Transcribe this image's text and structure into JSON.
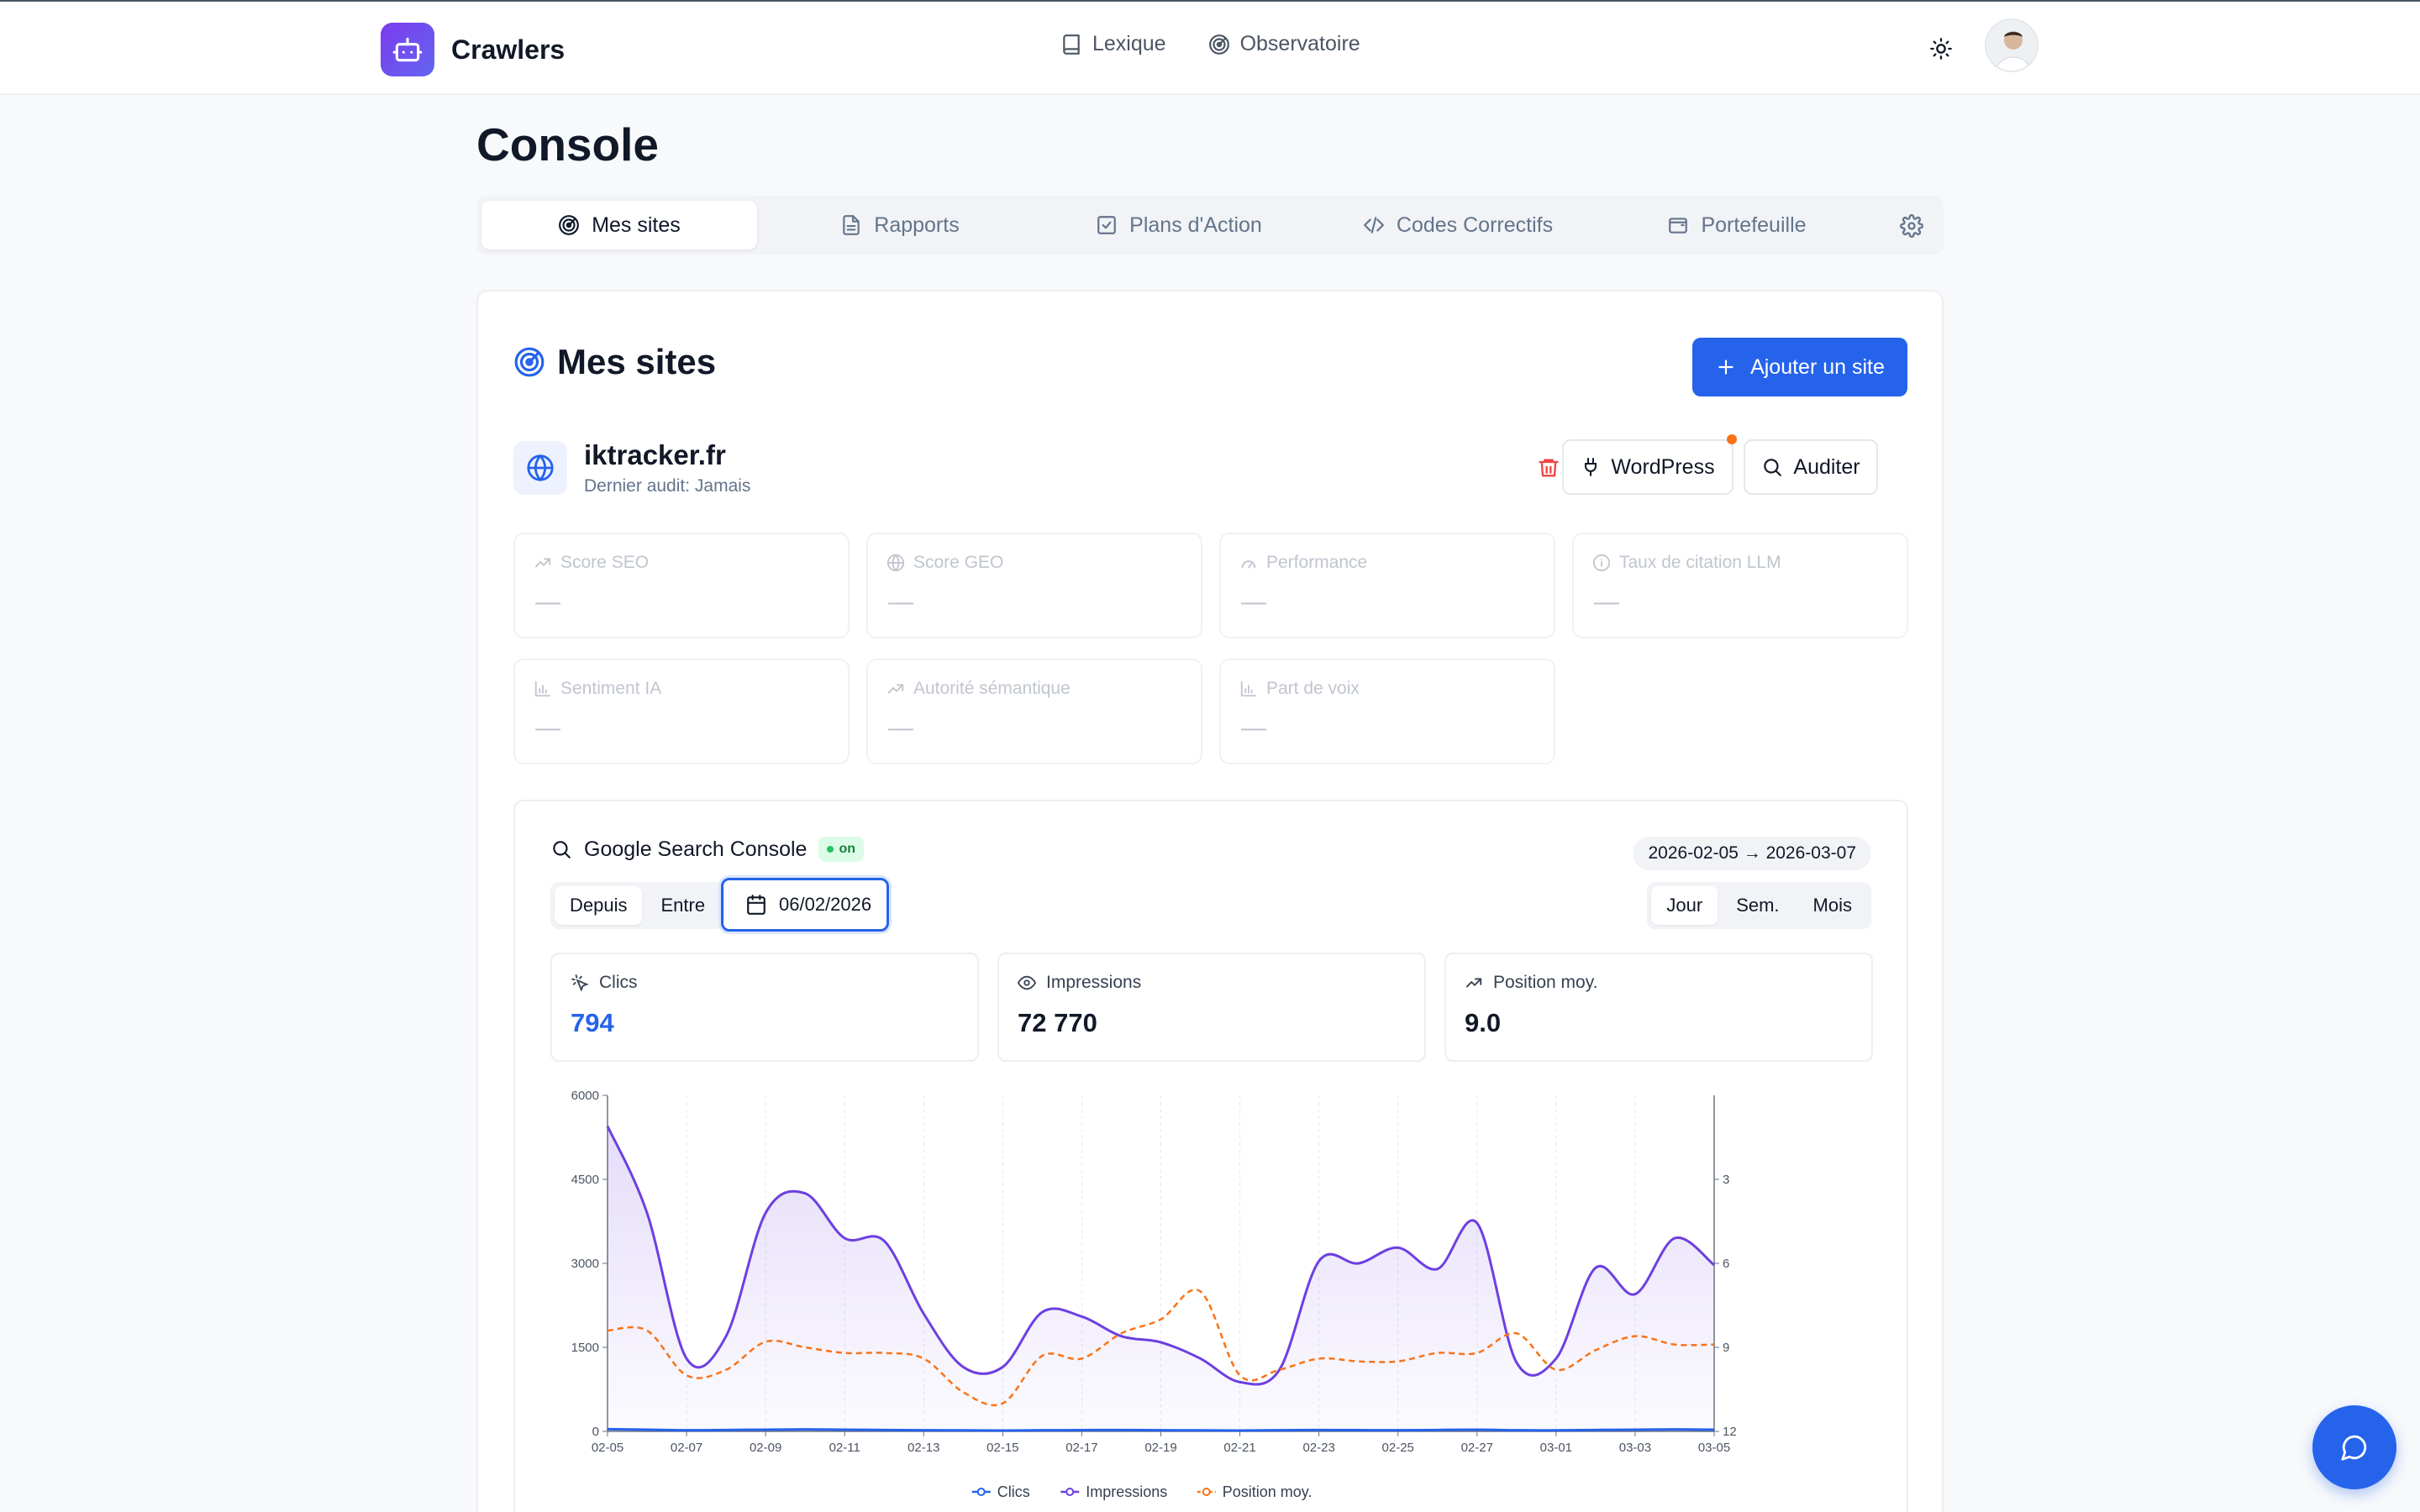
{
  "app": {
    "name": "Crawlers"
  },
  "topnav": {
    "items": [
      {
        "label": "Lexique",
        "icon": "book-icon"
      },
      {
        "label": "Observatoire",
        "icon": "radar-icon"
      }
    ]
  },
  "page": {
    "title": "Console"
  },
  "tabs": [
    {
      "label": "Mes sites",
      "icon": "radar-icon",
      "active": true
    },
    {
      "label": "Rapports",
      "icon": "document-icon",
      "active": false
    },
    {
      "label": "Plans d'Action",
      "icon": "checkbox-icon",
      "active": false
    },
    {
      "label": "Codes Correctifs",
      "icon": "code-icon",
      "active": false
    },
    {
      "label": "Portefeuille",
      "icon": "wallet-icon",
      "active": false
    }
  ],
  "section": {
    "title": "Mes sites",
    "add_button": "Ajouter un site"
  },
  "site": {
    "name": "iktracker.fr",
    "last_audit": "Dernier audit: Jamais",
    "wordpress_button": "WordPress",
    "audit_button": "Auditer"
  },
  "metrics": [
    {
      "label": "Score SEO",
      "value": "—",
      "icon": "trend-up-icon"
    },
    {
      "label": "Score GEO",
      "value": "—",
      "icon": "globe-icon"
    },
    {
      "label": "Performance",
      "value": "—",
      "icon": "gauge-icon"
    },
    {
      "label": "Taux de citation LLM",
      "value": "—",
      "icon": "info-icon"
    },
    {
      "label": "Sentiment IA",
      "value": "—",
      "icon": "bar-chart-icon"
    },
    {
      "label": "Autorité sémantique",
      "value": "—",
      "icon": "trend-up-icon"
    },
    {
      "label": "Part de voix",
      "value": "—",
      "icon": "bar-chart-icon"
    }
  ],
  "gsc": {
    "title": "Google Search Console",
    "status": "on",
    "date_range": "2026-02-05 → 2026-03-07",
    "mode": {
      "options": [
        "Depuis",
        "Entre"
      ],
      "selected": "Depuis"
    },
    "date_value": "06/02/2026",
    "granularity": {
      "options": [
        "Jour",
        "Sem.",
        "Mois"
      ],
      "selected": "Jour"
    },
    "kpis": [
      {
        "label": "Clics",
        "value": "794",
        "icon": "click-icon",
        "color": "#2563eb"
      },
      {
        "label": "Impressions",
        "value": "72 770",
        "icon": "eye-icon",
        "color": "#111827"
      },
      {
        "label": "Position moy.",
        "value": "9.0",
        "icon": "trend-up-icon",
        "color": "#111827"
      }
    ]
  },
  "chart_data": {
    "type": "line",
    "x": [
      "02-05",
      "02-06",
      "02-07",
      "02-08",
      "02-09",
      "02-10",
      "02-11",
      "02-12",
      "02-13",
      "02-14",
      "02-15",
      "02-16",
      "02-17",
      "02-18",
      "02-19",
      "02-20",
      "02-21",
      "02-22",
      "02-23",
      "02-24",
      "02-25",
      "02-26",
      "02-27",
      "02-28",
      "03-01",
      "03-02",
      "03-03",
      "03-04",
      "03-05"
    ],
    "x_tick_labels": [
      "02-05",
      "02-07",
      "02-09",
      "02-11",
      "02-13",
      "02-15",
      "02-17",
      "02-19",
      "02-21",
      "02-23",
      "02-25",
      "02-27",
      "03-01",
      "03-03",
      "03-05"
    ],
    "y_left": {
      "ticks": [
        0,
        1500,
        3000,
        4500,
        6000
      ],
      "range": [
        0,
        6000
      ]
    },
    "y_right": {
      "ticks": [
        3,
        6,
        9,
        12
      ],
      "range": [
        0,
        12
      ],
      "inverted": true
    },
    "series": [
      {
        "name": "Clics",
        "axis": "left",
        "color": "#2563eb",
        "style": "solid",
        "values": [
          40,
          30,
          20,
          25,
          30,
          35,
          30,
          25,
          20,
          18,
          15,
          20,
          22,
          25,
          20,
          18,
          15,
          20,
          25,
          22,
          20,
          25,
          30,
          20,
          18,
          25,
          30,
          35,
          30
        ]
      },
      {
        "name": "Impressions",
        "axis": "left",
        "color": "#6d3fe0",
        "style": "solid",
        "fill": true,
        "values": [
          5450,
          3900,
          1300,
          1700,
          3900,
          4250,
          3450,
          3400,
          2100,
          1150,
          1150,
          2130,
          2050,
          1700,
          1590,
          1300,
          880,
          1100,
          3040,
          3000,
          3280,
          2900,
          3720,
          1230,
          1300,
          2920,
          2450,
          3450,
          2970
        ]
      },
      {
        "name": "Position moy.",
        "axis": "right",
        "color": "#f97316",
        "style": "dashed",
        "values": [
          8.4,
          8.4,
          10.0,
          9.8,
          8.8,
          9.0,
          9.2,
          9.2,
          9.4,
          10.6,
          11.0,
          9.3,
          9.4,
          8.5,
          8.0,
          7.0,
          10.0,
          9.8,
          9.4,
          9.5,
          9.5,
          9.2,
          9.2,
          8.5,
          9.8,
          9.1,
          8.6,
          8.9,
          8.9
        ]
      }
    ],
    "legend_position": "bottom-center",
    "grid": "vertical-dashed"
  },
  "colors": {
    "accent": "#2563eb",
    "brand_gradient_start": "#7c3aed",
    "brand_gradient_end": "#6366f1",
    "notification": "#f97316",
    "danger": "#ef4444"
  }
}
